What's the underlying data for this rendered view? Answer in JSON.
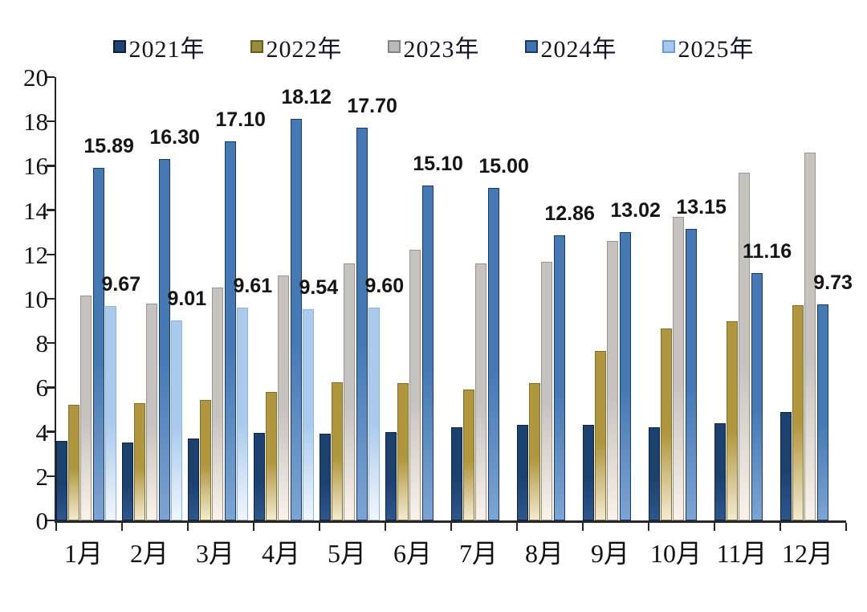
{
  "chart_data": {
    "type": "bar",
    "title": "",
    "categories": [
      "1月",
      "2月",
      "3月",
      "4月",
      "5月",
      "6月",
      "7月",
      "8月",
      "9月",
      "10月",
      "11月",
      "12月"
    ],
    "series": [
      {
        "name": "2021年",
        "color_top": "#1d416f",
        "color_bottom": "#2e568c",
        "border": "#10233f",
        "marker_color": "#1f4473",
        "marker_border": "#0e2038",
        "values": [
          3.6,
          3.5,
          3.7,
          3.95,
          3.9,
          4.0,
          4.2,
          4.3,
          4.3,
          4.2,
          4.4,
          4.9
        ],
        "data_labels": [
          null,
          null,
          null,
          null,
          null,
          null,
          null,
          null,
          null,
          null,
          null,
          null
        ]
      },
      {
        "name": "2022年",
        "color_top": "#b0963e",
        "color_bottom": "#f3ead0",
        "border": "#82702d",
        "marker_color": "#9a8c3e",
        "marker_border": "#665c20",
        "values": [
          5.2,
          5.3,
          5.45,
          5.8,
          6.25,
          6.2,
          5.9,
          6.2,
          7.65,
          8.65,
          9.0,
          9.7
        ],
        "data_labels": [
          null,
          null,
          null,
          null,
          null,
          null,
          null,
          null,
          null,
          null,
          null,
          null
        ]
      },
      {
        "name": "2023年",
        "color_top": "#c6c2bf",
        "color_bottom": "#faf2ea",
        "border": "#9a948e",
        "marker_color": "#b9b9b9",
        "marker_border": "#848484",
        "values": [
          10.15,
          9.8,
          10.5,
          11.05,
          11.6,
          12.2,
          11.6,
          11.65,
          12.6,
          13.7,
          15.7,
          16.6
        ],
        "data_labels": [
          null,
          null,
          null,
          null,
          null,
          null,
          null,
          null,
          null,
          null,
          null,
          null
        ]
      },
      {
        "name": "2024年",
        "color_top": "#4679b4",
        "color_bottom": "#7da4d2",
        "border": "#1b3a61",
        "marker_color": "#3f74ae",
        "marker_border": "#1c3a5f",
        "values": [
          15.89,
          16.3,
          17.1,
          18.12,
          17.7,
          15.1,
          15.0,
          12.86,
          13.02,
          13.15,
          11.16,
          9.73
        ],
        "data_labels": [
          "15.89",
          "16.30",
          "17.10",
          "18.12",
          "17.70",
          "15.10",
          "15.00",
          "12.86",
          "13.02",
          "13.15",
          "11.16",
          "9.73"
        ]
      },
      {
        "name": "2025年",
        "color_top": "#abcbee",
        "color_bottom": "#f0f6fd",
        "border": "#8fb2d8",
        "marker_color": "#a6c8ef",
        "marker_border": "#6f9ccb",
        "values": [
          9.67,
          9.01,
          9.61,
          9.54,
          9.6,
          null,
          null,
          null,
          null,
          null,
          null,
          null
        ],
        "data_labels": [
          "9.67",
          "9.01",
          "9.61",
          "9.54",
          "9.60",
          null,
          null,
          null,
          null,
          null,
          null,
          null
        ]
      }
    ],
    "ylim": [
      0,
      20
    ],
    "ytick_step": 2,
    "ytick_labels": [
      "0",
      "2",
      "4",
      "6",
      "8",
      "10",
      "12",
      "14",
      "16",
      "18",
      "20"
    ],
    "grid": false,
    "legend_position": "top"
  }
}
